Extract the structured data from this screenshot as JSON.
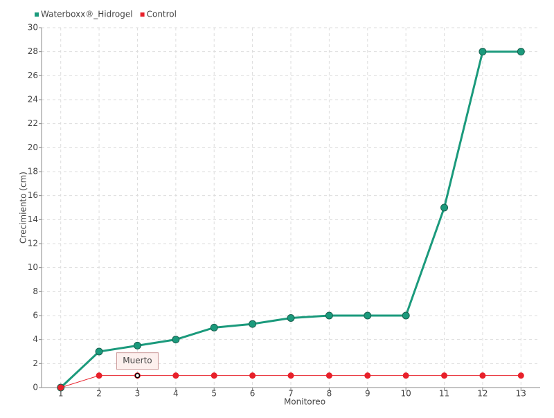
{
  "chart_data": {
    "type": "line",
    "x_label": "Monitoreo",
    "y_label": "Crecimiento (cm)",
    "categories": [
      "1",
      "2",
      "3",
      "4",
      "5",
      "6",
      "7",
      "8",
      "9",
      "10",
      "11",
      "12",
      "13"
    ],
    "series": [
      {
        "name": "Waterboxx®_Hidrogel",
        "color": "#1b9a7c",
        "values": [
          0,
          3,
          3.5,
          4,
          5,
          5.3,
          5.8,
          6,
          6,
          6,
          15,
          28,
          28
        ]
      },
      {
        "name": "Control",
        "color": "#e8202a",
        "values": [
          0,
          1,
          1,
          1,
          1,
          1,
          1,
          1,
          1,
          1,
          1,
          1,
          1
        ]
      }
    ],
    "ylim": [
      0,
      30
    ],
    "yticks": [
      0,
      2,
      4,
      6,
      8,
      10,
      12,
      14,
      16,
      18,
      20,
      22,
      24,
      26,
      28,
      30
    ],
    "grid": true,
    "legend": "top-left",
    "annotations": [
      {
        "text": "Muerto",
        "x": "3",
        "series": "Control"
      }
    ]
  }
}
